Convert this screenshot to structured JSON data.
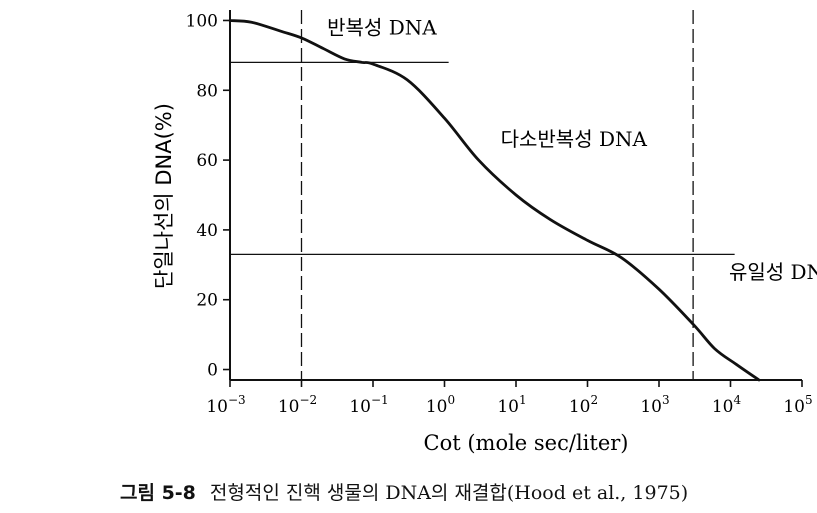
{
  "chart_data": {
    "type": "line",
    "xlabel": "Cot (mole sec/liter)",
    "ylabel": "단일나선의 DNA(%)",
    "x_scale": "log",
    "xlim": [
      0.001,
      100000
    ],
    "ylim": [
      -3,
      103
    ],
    "x_ticks": [
      {
        "value": 0.001,
        "base": "10",
        "exp": "−3"
      },
      {
        "value": 0.01,
        "base": "10",
        "exp": "−2"
      },
      {
        "value": 0.1,
        "base": "10",
        "exp": "−1"
      },
      {
        "value": 1,
        "base": "10",
        "exp": "0"
      },
      {
        "value": 10,
        "base": "10",
        "exp": "1"
      },
      {
        "value": 100,
        "base": "10",
        "exp": "2"
      },
      {
        "value": 1000,
        "base": "10",
        "exp": "3"
      },
      {
        "value": 10000,
        "base": "10",
        "exp": "4"
      },
      {
        "value": 100000,
        "base": "10",
        "exp": "5"
      }
    ],
    "y_ticks": [
      0,
      20,
      40,
      60,
      80,
      100
    ],
    "grid": false,
    "series": [
      {
        "points": [
          [
            0.001,
            100
          ],
          [
            0.002,
            99.5
          ],
          [
            0.005,
            97
          ],
          [
            0.01,
            95
          ],
          [
            0.02,
            92
          ],
          [
            0.04,
            89
          ],
          [
            0.07,
            88
          ],
          [
            0.1,
            87.5
          ],
          [
            0.3,
            83
          ],
          [
            1,
            72
          ],
          [
            3,
            60
          ],
          [
            10,
            50
          ],
          [
            30,
            43
          ],
          [
            100,
            37
          ],
          [
            300,
            32
          ],
          [
            1000,
            23
          ],
          [
            3000,
            13
          ],
          [
            6000,
            6
          ],
          [
            12000,
            1.5
          ],
          [
            25000,
            -3
          ]
        ]
      }
    ],
    "reference_lines": [
      {
        "orientation": "vertical",
        "x": 0.01,
        "style": "dashed"
      },
      {
        "orientation": "vertical",
        "x": 3000,
        "style": "dashed"
      },
      {
        "orientation": "horizontal",
        "y": 88,
        "x_from": 0.001,
        "x_to": 0.6,
        "style": "solid"
      },
      {
        "orientation": "horizontal",
        "y": 33,
        "x_from": 0.001,
        "x_to": 6000,
        "style": "solid"
      }
    ],
    "annotations": [
      {
        "text": "반복성 DNA",
        "x": 0.012,
        "y": 98
      },
      {
        "text": "다소반복성 DNA",
        "x": 3.2,
        "y": 66
      },
      {
        "text": "유일성 DNA",
        "x": 5000,
        "y": 28
      }
    ]
  },
  "caption": {
    "figure_number": "그림 5-8",
    "text": "전형적인 진핵 생물의 DNA의 재결합(Hood et al., 1975)"
  }
}
